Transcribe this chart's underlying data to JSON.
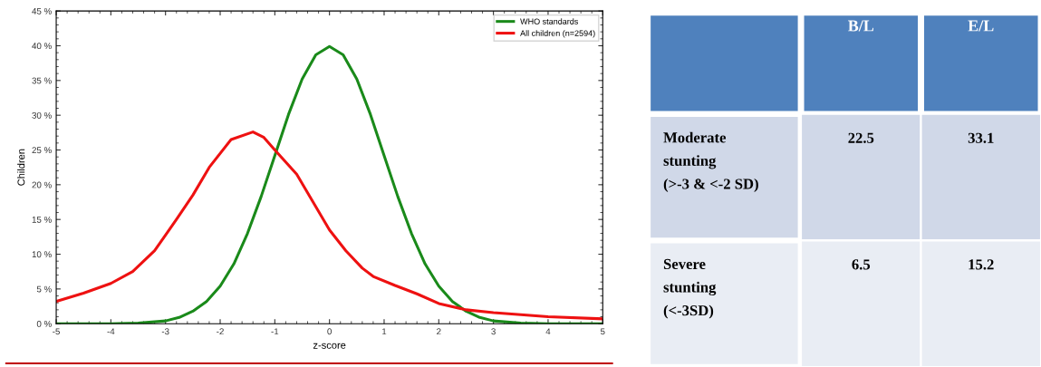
{
  "chart_data": [
    {
      "type": "line",
      "xlabel": "z-score",
      "ylabel": "Children",
      "legend": "top right",
      "grid": false,
      "marker": "none",
      "line_style": "solid",
      "xlim": [
        -5,
        5
      ],
      "xticks": [
        -5,
        -4,
        -3,
        -2,
        -1,
        0,
        1,
        2,
        3,
        4,
        5
      ],
      "ylim": [
        0,
        45
      ],
      "yticks": [
        {
          "value": 0,
          "label": "0 %"
        },
        {
          "value": 5,
          "label": "5 %"
        },
        {
          "value": 10,
          "label": "10 %"
        },
        {
          "value": 15,
          "label": "15 %"
        },
        {
          "value": 20,
          "label": "20 %"
        },
        {
          "value": 25,
          "label": "25 %"
        },
        {
          "value": 30,
          "label": "30 %"
        },
        {
          "value": 35,
          "label": "35 %"
        },
        {
          "value": 40,
          "label": "40 %"
        },
        {
          "value": 45,
          "label": "45 %"
        }
      ],
      "series": [
        {
          "name": "WHO standards",
          "color": "#1a8a1a",
          "x": [
            -5,
            -4,
            -3.5,
            -3,
            -2.75,
            -2.5,
            -2.25,
            -2,
            -1.75,
            -1.5,
            -1.25,
            -1,
            -0.75,
            -0.5,
            -0.25,
            0,
            0.25,
            0.5,
            0.75,
            1,
            1.25,
            1.5,
            1.75,
            2,
            2.25,
            2.5,
            2.75,
            3,
            3.5,
            4,
            5
          ],
          "values": [
            0,
            0,
            0.1,
            0.4,
            0.9,
            1.8,
            3.2,
            5.4,
            8.6,
            13,
            18.3,
            24.2,
            30.1,
            35.2,
            38.7,
            39.9,
            38.7,
            35.2,
            30.1,
            24.2,
            18.3,
            13,
            8.6,
            5.4,
            3.2,
            1.8,
            0.9,
            0.4,
            0.1,
            0,
            0
          ]
        },
        {
          "name": "All children (n=2594)",
          "color": "#ee1111",
          "x": [
            -5,
            -4.5,
            -4,
            -3.6,
            -3.2,
            -2.8,
            -2.5,
            -2.2,
            -1.8,
            -1.4,
            -1.2,
            -1,
            -0.6,
            -0.3,
            0,
            0.3,
            0.6,
            0.8,
            1.2,
            1.6,
            2,
            2.5,
            3,
            3.5,
            4,
            5
          ],
          "values": [
            3.2,
            4.4,
            5.8,
            7.5,
            10.5,
            15,
            18.5,
            22.5,
            26.5,
            27.6,
            26.8,
            25,
            21.5,
            17.5,
            13.5,
            10.5,
            8,
            6.8,
            5.5,
            4.3,
            2.9,
            2,
            1.6,
            1.3,
            1,
            0.7
          ]
        }
      ]
    },
    {
      "type": "heatmap",
      "categories": [
        "B/L",
        "E/L"
      ],
      "y_categories": [
        "Moderate\nstunting\n(>-3 & <-2 SD)",
        "Severe\nstunting\n(<-3SD)"
      ],
      "cells": [
        [
          22.5,
          33.1
        ],
        [
          6.5,
          15.2
        ]
      ],
      "data_labels": true
    }
  ]
}
